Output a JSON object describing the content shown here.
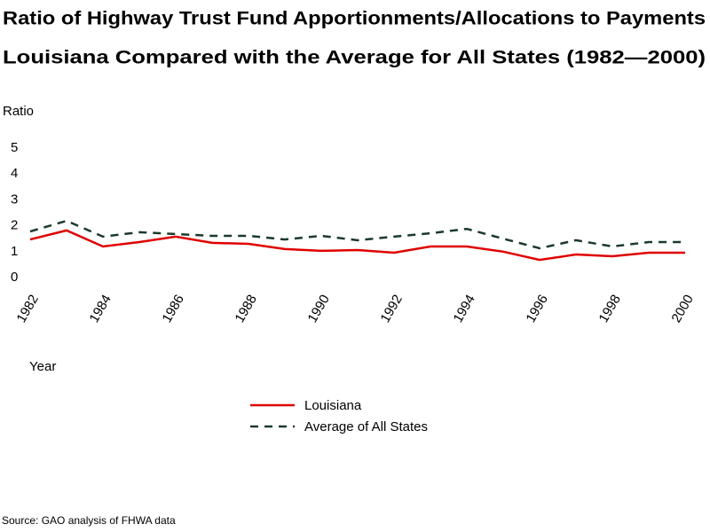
{
  "chart_data": {
    "type": "line",
    "title": "Ratio of Highway Trust Fund Apportionments/Allocations to Payments",
    "subtitle": "Louisiana Compared with the Average for All States (1982—2000)",
    "y_label": "Ratio",
    "x_label": "Year",
    "source": "Source: GAO analysis of FHWA data",
    "x": [
      1982,
      1983,
      1984,
      1985,
      1986,
      1987,
      1988,
      1989,
      1990,
      1991,
      1992,
      1993,
      1994,
      1995,
      1996,
      1997,
      1998,
      1999,
      2000
    ],
    "xlim": [
      1982,
      2000
    ],
    "xticks": [
      1982,
      1984,
      1986,
      1988,
      1990,
      1992,
      1994,
      1996,
      1998,
      2000
    ],
    "ylim": [
      0,
      5
    ],
    "yticks": [
      0,
      1,
      2,
      3,
      4,
      5
    ],
    "series": [
      {
        "name": "Louisiana",
        "color": "#e00000",
        "dash": "solid",
        "values": [
          1.47,
          1.82,
          1.2,
          1.37,
          1.58,
          1.34,
          1.3,
          1.1,
          1.03,
          1.06,
          0.96,
          1.2,
          1.2,
          1.0,
          0.68,
          0.89,
          0.82,
          0.96,
          0.96
        ]
      },
      {
        "name": "Average of All States",
        "color": "#1a3a2a",
        "dash": "dashed",
        "values": [
          1.78,
          2.19,
          1.58,
          1.75,
          1.68,
          1.61,
          1.61,
          1.47,
          1.61,
          1.44,
          1.58,
          1.71,
          1.88,
          1.5,
          1.13,
          1.44,
          1.2,
          1.37,
          1.37
        ]
      }
    ]
  }
}
